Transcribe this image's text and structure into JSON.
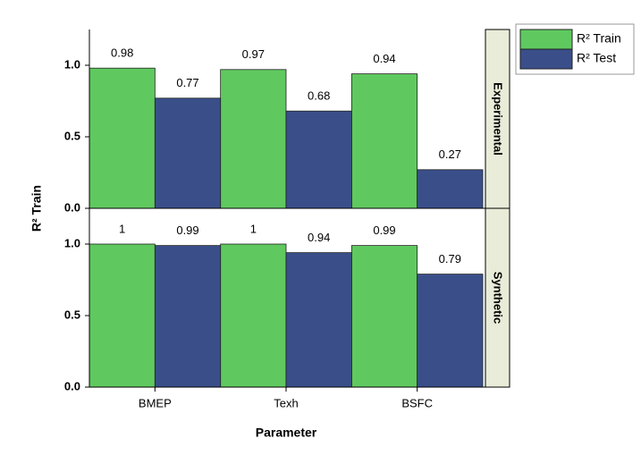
{
  "chart_data": {
    "type": "bar",
    "x_label": "Parameter",
    "y_label": "R² Train",
    "categories": [
      "BMEP",
      "Texh",
      "BSFC"
    ],
    "panels": [
      "Experimental",
      "Synthetic"
    ],
    "series": [
      {
        "name": "R² Train",
        "color": "#5fc95f",
        "values": [
          [
            0.98,
            0.97,
            0.94
          ],
          [
            1,
            1,
            0.99
          ]
        ]
      },
      {
        "name": "R² Test",
        "color": "#3a4f8a",
        "values": [
          [
            0.77,
            0.68,
            0.27
          ],
          [
            0.99,
            0.94,
            0.79
          ]
        ]
      }
    ],
    "ylim": [
      0,
      1.25
    ],
    "yticks": [
      {
        "value": 0,
        "label": "0.0"
      },
      {
        "value": 0.5,
        "label": "0.5"
      },
      {
        "value": 1,
        "label": "1.0"
      }
    ],
    "legend": "upper right"
  }
}
